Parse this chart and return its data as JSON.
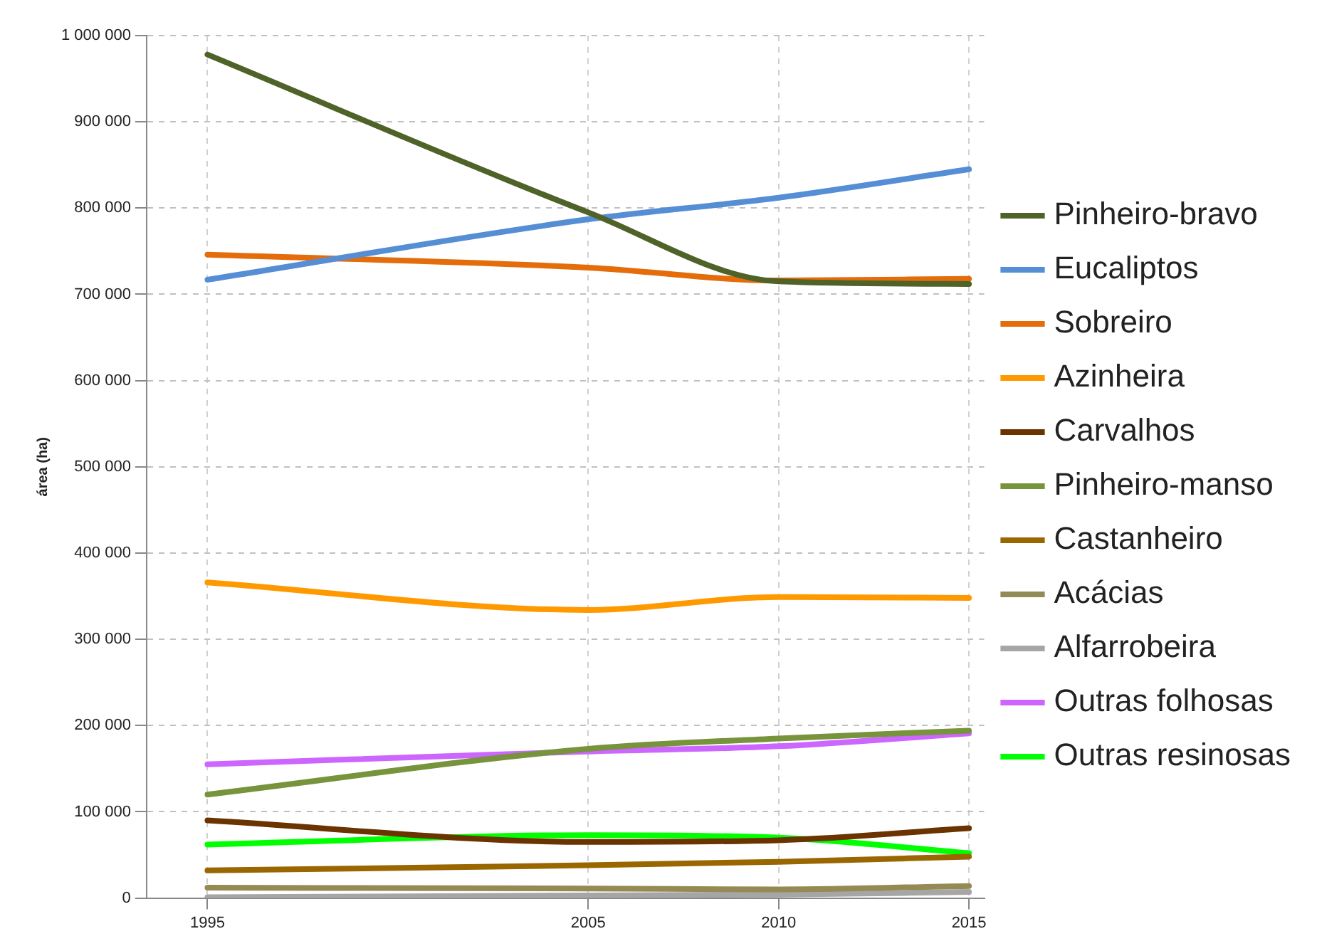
{
  "chart_data": {
    "type": "line",
    "ylabel": "área (ha)",
    "x": [
      1995,
      2005,
      2010,
      2015
    ],
    "xlim": [
      1993.4,
      2015.4
    ],
    "xticks": [
      1995,
      2005,
      2010,
      2015
    ],
    "ylim": [
      0,
      1000000
    ],
    "yticks": [
      0,
      {
        "value": 100000,
        "label": "100 000"
      },
      {
        "value": 200000,
        "label": "200 000"
      },
      {
        "value": 300000,
        "label": "300 000"
      },
      {
        "value": 400000,
        "label": "400 000"
      },
      {
        "value": 500000,
        "label": "500 000"
      },
      {
        "value": 600000,
        "label": "600 000"
      },
      {
        "value": 700000,
        "label": "700 000"
      },
      {
        "value": 800000,
        "label": "800 000"
      },
      {
        "value": 900000,
        "label": "900 000"
      },
      {
        "value": 1000000,
        "label": "1 000 000"
      }
    ],
    "grid": true,
    "legend": "right",
    "marker": "none",
    "line_style": "solid",
    "series": [
      {
        "name": "Pinheiro-bravo",
        "color": "#4f6228",
        "values": [
          978000,
          795000,
          715000,
          712000
        ]
      },
      {
        "name": "Eucaliptos",
        "color": "#558ed5",
        "values": [
          717000,
          787000,
          812000,
          845000
        ]
      },
      {
        "name": "Sobreiro",
        "color": "#e46c0a",
        "values": [
          746000,
          731000,
          716000,
          718000
        ]
      },
      {
        "name": "Azinheira",
        "color": "#ff9900",
        "values": [
          366000,
          334000,
          349000,
          348000
        ]
      },
      {
        "name": "Carvalhos",
        "color": "#6b3300",
        "values": [
          90000,
          65000,
          67000,
          81000
        ]
      },
      {
        "name": "Pinheiro-manso",
        "color": "#77933c",
        "values": [
          120000,
          173000,
          185000,
          194000
        ]
      },
      {
        "name": "Castanheiro",
        "color": "#996600",
        "values": [
          32000,
          38000,
          42000,
          48000
        ]
      },
      {
        "name": "Acácias",
        "color": "#948a54",
        "values": [
          12000,
          11000,
          10000,
          14000
        ]
      },
      {
        "name": "Alfarrobeira",
        "color": "#a6a6a6",
        "values": [
          1000,
          3000,
          4000,
          7000
        ]
      },
      {
        "name": "Outras folhosas",
        "color": "#cc66ff",
        "values": [
          155000,
          170000,
          176000,
          191000
        ]
      },
      {
        "name": "Outras resinosas",
        "color": "#00ff00",
        "values": [
          62000,
          73000,
          70000,
          52000
        ]
      }
    ]
  }
}
